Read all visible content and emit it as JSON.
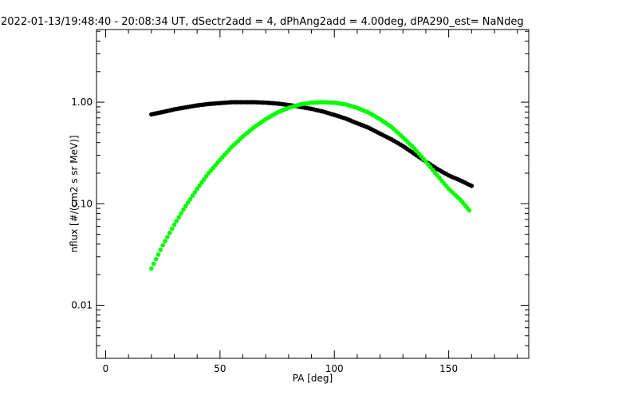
{
  "chart_data": {
    "type": "scatter",
    "title": "2022-01-13/19:48:40 - 20:08:34 UT, dSectr2add = 4, dPhAng2add = 4.00deg, dPA290_est=    NaNdeg",
    "xlabel": "PA [deg]",
    "ylabel": "nflux [#/(cm2 s sr MeV)]",
    "xlim": [
      -4,
      185
    ],
    "ylim": [
      0.003,
      5.2
    ],
    "yscale": "log",
    "xticks": [
      {
        "value": 0,
        "label": "0"
      },
      {
        "value": 50,
        "label": "50"
      },
      {
        "value": 100,
        "label": "100"
      },
      {
        "value": 150,
        "label": "150"
      }
    ],
    "yticks": [
      {
        "value": 1.0,
        "label": "1.00"
      },
      {
        "value": 0.1,
        "label": "0.10"
      },
      {
        "value": 0.01,
        "label": "0.01"
      }
    ],
    "grid": false,
    "series": [
      {
        "color": "#000000",
        "points": [
          [
            20,
            0.76
          ],
          [
            25,
            0.8
          ],
          [
            30,
            0.85
          ],
          [
            35,
            0.89
          ],
          [
            40,
            0.93
          ],
          [
            45,
            0.96
          ],
          [
            50,
            0.98
          ],
          [
            55,
            1.0
          ],
          [
            60,
            1.0
          ],
          [
            65,
            1.0
          ],
          [
            70,
            0.99
          ],
          [
            75,
            0.97
          ],
          [
            80,
            0.94
          ],
          [
            85,
            0.9
          ],
          [
            90,
            0.86
          ],
          [
            95,
            0.81
          ],
          [
            100,
            0.75
          ],
          [
            105,
            0.69
          ],
          [
            110,
            0.62
          ],
          [
            115,
            0.56
          ],
          [
            120,
            0.49
          ],
          [
            125,
            0.43
          ],
          [
            130,
            0.37
          ],
          [
            135,
            0.31
          ],
          [
            140,
            0.26
          ],
          [
            145,
            0.22
          ],
          [
            150,
            0.19
          ],
          [
            155,
            0.17
          ],
          [
            160,
            0.15
          ]
        ]
      },
      {
        "color": "#00ff00",
        "points": [
          [
            20,
            0.023
          ],
          [
            25,
            0.039
          ],
          [
            30,
            0.062
          ],
          [
            35,
            0.095
          ],
          [
            40,
            0.14
          ],
          [
            45,
            0.2
          ],
          [
            50,
            0.27
          ],
          [
            55,
            0.36
          ],
          [
            60,
            0.46
          ],
          [
            65,
            0.57
          ],
          [
            70,
            0.68
          ],
          [
            75,
            0.79
          ],
          [
            80,
            0.88
          ],
          [
            85,
            0.95
          ],
          [
            90,
            0.99
          ],
          [
            95,
            1.0
          ],
          [
            100,
            0.99
          ],
          [
            105,
            0.95
          ],
          [
            110,
            0.88
          ],
          [
            115,
            0.79
          ],
          [
            120,
            0.68
          ],
          [
            125,
            0.57
          ],
          [
            130,
            0.45
          ],
          [
            135,
            0.35
          ],
          [
            140,
            0.26
          ],
          [
            145,
            0.19
          ],
          [
            150,
            0.14
          ],
          [
            155,
            0.11
          ],
          [
            159,
            0.086
          ]
        ]
      }
    ]
  }
}
